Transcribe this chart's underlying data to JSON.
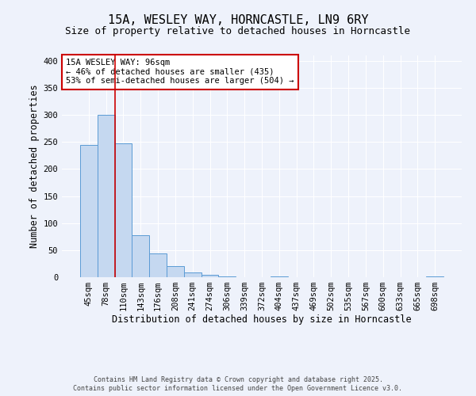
{
  "title": "15A, WESLEY WAY, HORNCASTLE, LN9 6RY",
  "subtitle": "Size of property relative to detached houses in Horncastle",
  "xlabel": "Distribution of detached houses by size in Horncastle",
  "ylabel": "Number of detached properties",
  "bar_labels": [
    "45sqm",
    "78sqm",
    "110sqm",
    "143sqm",
    "176sqm",
    "208sqm",
    "241sqm",
    "274sqm",
    "306sqm",
    "339sqm",
    "372sqm",
    "404sqm",
    "437sqm",
    "469sqm",
    "502sqm",
    "535sqm",
    "567sqm",
    "600sqm",
    "633sqm",
    "665sqm",
    "698sqm"
  ],
  "bar_values": [
    245,
    300,
    248,
    77,
    44,
    21,
    9,
    5,
    1,
    0,
    0,
    1,
    0,
    0,
    0,
    0,
    0,
    0,
    0,
    0,
    2
  ],
  "bar_color": "#c5d8f0",
  "bar_edge_color": "#5b9bd5",
  "vline_color": "#cc0000",
  "ylim": [
    0,
    410
  ],
  "yticks": [
    0,
    50,
    100,
    150,
    200,
    250,
    300,
    350,
    400
  ],
  "annotation_title": "15A WESLEY WAY: 96sqm",
  "annotation_line1": "← 46% of detached houses are smaller (435)",
  "annotation_line2": "53% of semi-detached houses are larger (504) →",
  "annotation_box_color": "#ffffff",
  "annotation_box_edge": "#cc0000",
  "footer1": "Contains HM Land Registry data © Crown copyright and database right 2025.",
  "footer2": "Contains public sector information licensed under the Open Government Licence v3.0.",
  "bg_color": "#eef2fb",
  "grid_color": "#d0d8e8",
  "title_fontsize": 11,
  "subtitle_fontsize": 9,
  "axis_label_fontsize": 8.5,
  "tick_fontsize": 7.5,
  "annotation_fontsize": 7.5,
  "footer_fontsize": 6
}
